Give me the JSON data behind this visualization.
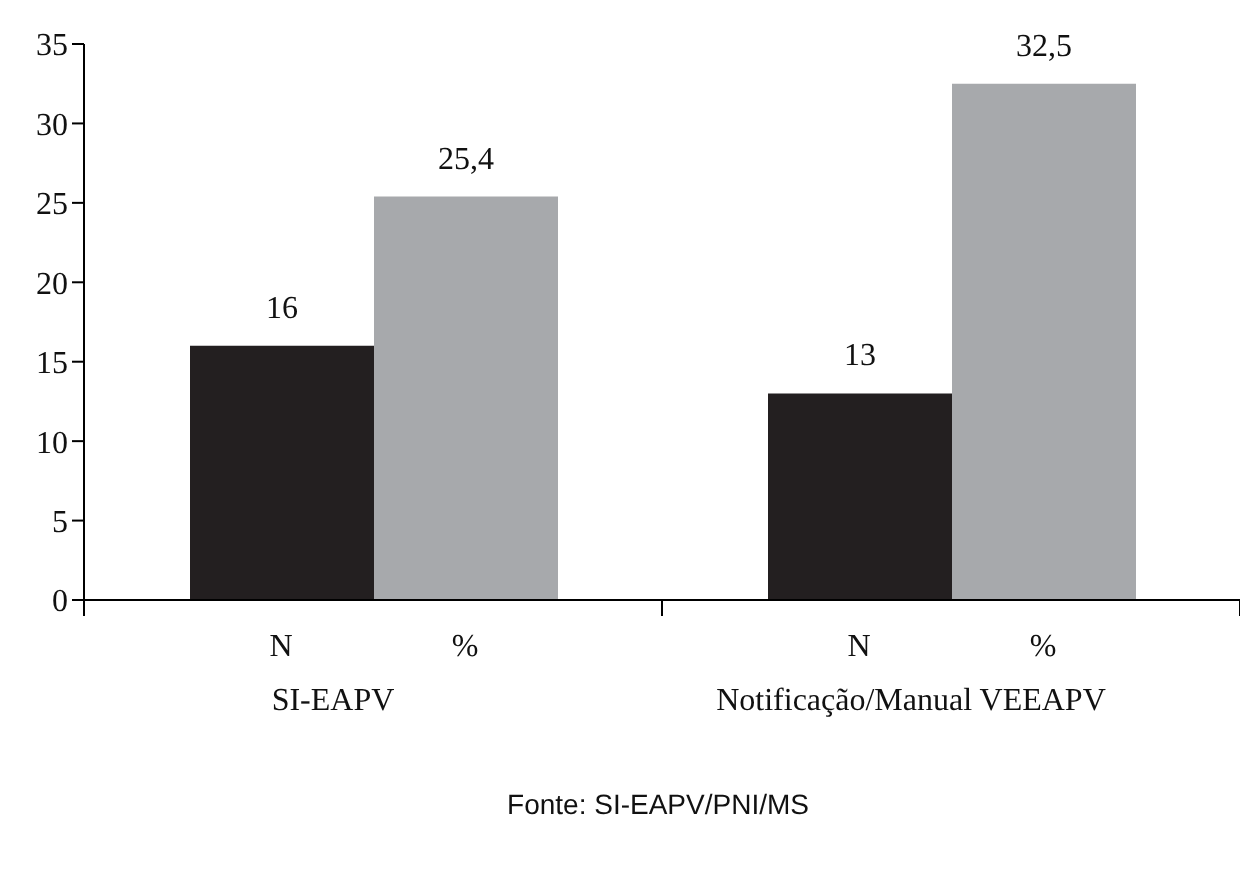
{
  "chart_data": {
    "type": "bar",
    "categories": [
      "SI-EAPV",
      "Notificação/Manual VEEAPV"
    ],
    "series": [
      {
        "name": "N",
        "color": "#231f20",
        "values": [
          16,
          13
        ],
        "value_labels": [
          "16",
          "13"
        ]
      },
      {
        "name": "%",
        "color": "#a7a9ac",
        "values": [
          25.4,
          32.5
        ],
        "value_labels": [
          "25,4",
          "32,5"
        ]
      }
    ],
    "ylim": [
      0,
      35
    ],
    "yticks": [
      0,
      5,
      10,
      15,
      20,
      25,
      30,
      35
    ],
    "grid": false,
    "annotations": [
      "Fonte: SI-EAPV/PNI/MS"
    ]
  }
}
